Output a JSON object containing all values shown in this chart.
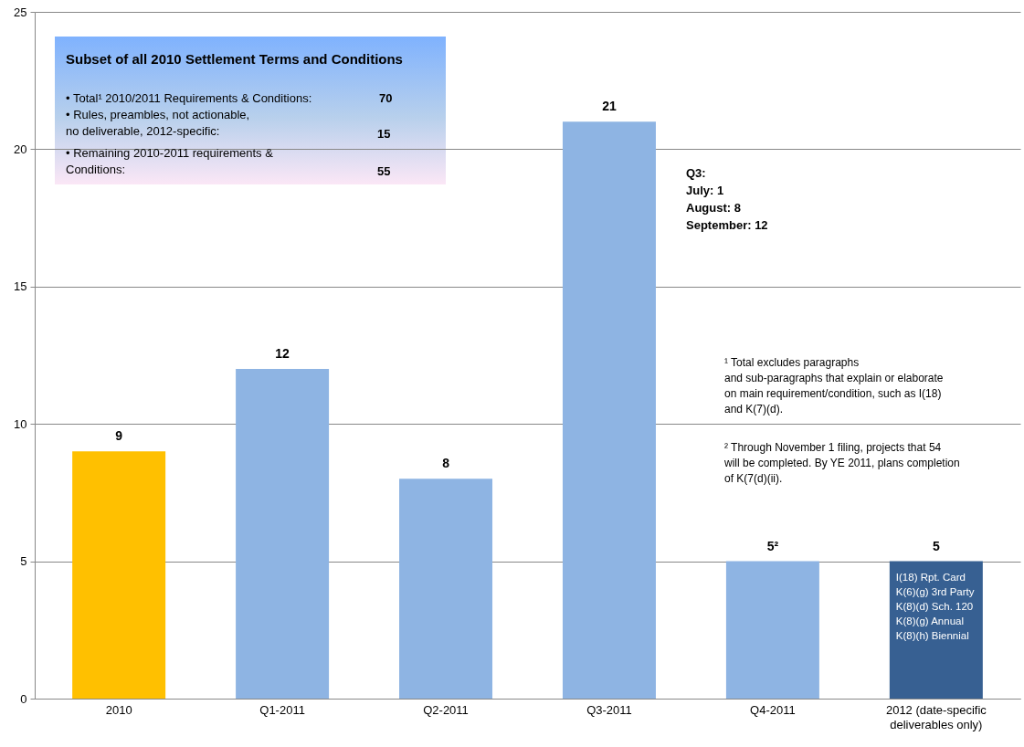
{
  "chart_data": {
    "type": "bar",
    "categories": [
      "2010",
      "Q1-2011",
      "Q2-2011",
      "Q3-2011",
      "Q4-2011",
      "2012 (date-specific\ndeliverables only)"
    ],
    "values": [
      9,
      12,
      8,
      21,
      5,
      5
    ],
    "colors": [
      "#ffc000",
      "#8eb4e3",
      "#8eb4e3",
      "#8eb4e3",
      "#8eb4e3",
      "#376092"
    ],
    "ylim": [
      0,
      25
    ],
    "yticks": [
      0,
      5,
      10,
      15,
      20,
      25
    ],
    "grid": "y",
    "value_labels": [
      "9",
      "12",
      "8",
      "21",
      "5²",
      "5"
    ],
    "annotations": [
      "Subset of all 2010  Settlement Terms and Conditions",
      "• Total¹ 2010/2011 Requirements & Conditions:",
      "70",
      "• Rules, preambles, not actionable,\n   no deliverable, 2012-specific:",
      "15",
      "• Remaining 2010-2011 requirements &\n   Conditions:",
      "55",
      "Q3:\nJuly:           1\nAugust:        8\nSeptember: 12",
      {
        "text": "I(18) Rpt. Card\nK(6)(g) 3rd Party\nK(8)(d) Sch. 120\nK(8)(g) Annual\nK(8)(h) Biennial",
        "x": "2012 (date-specific\ndeliverables only)",
        "y": 5
      },
      "¹ Total excludes paragraphs\n   and sub-paragraphs that explain or elaborate\n   on main requirement/condition, such as I(18)\n   and K(7)(d).",
      "² Through November 1 filing, projects that 54\n   will be completed.  By YE 2011, plans completion\n   of K(7(d)(ii)."
    ]
  }
}
